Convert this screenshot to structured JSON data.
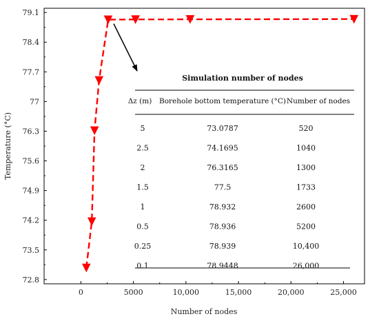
{
  "chart_data": {
    "type": "line",
    "title": "",
    "xlabel": "Number of nodes",
    "ylabel": "Temperature (°C)",
    "xlim": [
      -3500,
      27000
    ],
    "ylim": [
      72.7,
      79.2
    ],
    "x_tick_values": [
      0,
      5000,
      10000,
      15000,
      20000,
      25000
    ],
    "x_tick_labels": [
      "0",
      "5000",
      "10,000",
      "15,000",
      "20,000",
      "25,000"
    ],
    "y_tick_values": [
      72.8,
      73.5,
      74.2,
      74.9,
      75.6,
      76.3,
      77,
      77.7,
      78.4,
      79.1
    ],
    "y_tick_labels": [
      "72.8",
      "73.5",
      "74.2",
      "74.9",
      "75.6",
      "76.3",
      "77",
      "77.7",
      "78.4",
      "79.1"
    ],
    "grid": false,
    "legend": false,
    "series": [
      {
        "color": "#ff0000",
        "line_style": "dashed",
        "marker": "inverted-triangle",
        "x": [
          520,
          1040,
          1300,
          1733,
          2600,
          5200,
          10400,
          26000
        ],
        "y": [
          73.0787,
          74.1695,
          76.3165,
          77.5,
          78.932,
          78.936,
          78.939,
          78.9448
        ]
      }
    ],
    "annotation": {
      "type": "arrow",
      "from_point_index": 4
    },
    "inset_table": {
      "title": "Simulation number of nodes",
      "columns": [
        "Δz (m)",
        "Borehole bottom temperature (°C)",
        "Number of nodes"
      ],
      "rows": [
        [
          "5",
          "73.0787",
          "520"
        ],
        [
          "2.5",
          "74.1695",
          "1040"
        ],
        [
          "2",
          "76.3165",
          "1300"
        ],
        [
          "1.5",
          "77.5",
          "1733"
        ],
        [
          "1",
          "78.932",
          "2600"
        ],
        [
          "0.5",
          "78.936",
          "5200"
        ],
        [
          "0.25",
          "78.939",
          "10,400"
        ],
        [
          "0.1",
          "78.9448",
          "26,000"
        ]
      ]
    }
  }
}
